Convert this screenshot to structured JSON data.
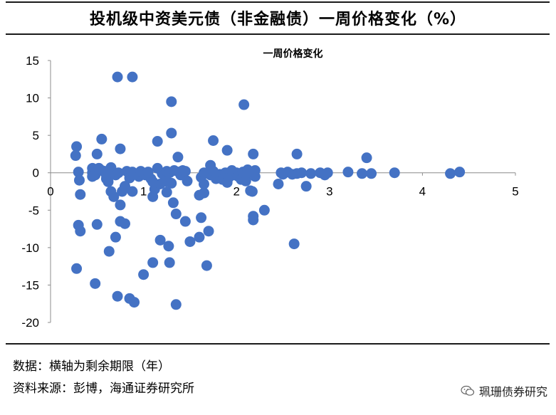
{
  "header": {
    "title": "投机级中资美元债（非金融债）一周价格变化（%）"
  },
  "chart_data": {
    "type": "scatter",
    "title": "一周价格变化",
    "xlabel": "",
    "ylabel": "",
    "xlim": [
      0,
      5
    ],
    "ylim": [
      -20,
      15
    ],
    "x_ticks": [
      0,
      1,
      2,
      3,
      4,
      5
    ],
    "y_ticks": [
      15,
      10,
      5,
      0,
      -5,
      -10,
      -15,
      -20
    ],
    "grid": false,
    "legend": "none",
    "marker_color": "#4472c4",
    "series": [
      {
        "points": [
          [
            0.28,
            3.5
          ],
          [
            0.27,
            2.3
          ],
          [
            0.3,
            0.1
          ],
          [
            0.31,
            -1.0
          ],
          [
            0.32,
            -2.9
          ],
          [
            0.3,
            -7.0
          ],
          [
            0.32,
            -7.8
          ],
          [
            0.28,
            -12.8
          ],
          [
            0.45,
            0.6
          ],
          [
            0.45,
            0.0
          ],
          [
            0.45,
            -0.5
          ],
          [
            0.48,
            -0.3
          ],
          [
            0.5,
            2.5
          ],
          [
            0.52,
            0.6
          ],
          [
            0.55,
            0.3
          ],
          [
            0.48,
            -14.8
          ],
          [
            0.5,
            -6.9
          ],
          [
            0.55,
            4.5
          ],
          [
            0.58,
            0.2
          ],
          [
            0.6,
            -0.8
          ],
          [
            0.62,
            -1.2
          ],
          [
            0.6,
            -0.3
          ],
          [
            0.6,
            0.0
          ],
          [
            0.65,
            0.7
          ],
          [
            0.65,
            -2.5
          ],
          [
            0.63,
            -10.5
          ],
          [
            0.68,
            -3.2
          ],
          [
            0.7,
            -0.3
          ],
          [
            0.7,
            -8.6
          ],
          [
            0.72,
            12.8
          ],
          [
            0.72,
            -16.5
          ],
          [
            0.73,
            0.0
          ],
          [
            0.75,
            3.2
          ],
          [
            0.75,
            -4.3
          ],
          [
            0.75,
            -6.5
          ],
          [
            0.77,
            -2.5
          ],
          [
            0.8,
            -1.8
          ],
          [
            0.8,
            -6.8
          ],
          [
            0.82,
            0.2
          ],
          [
            0.85,
            -0.2
          ],
          [
            0.85,
            -0.7
          ],
          [
            0.87,
            -0.3
          ],
          [
            0.88,
            0.1
          ],
          [
            0.9,
            -0.2
          ],
          [
            0.88,
            -2.5
          ],
          [
            0.85,
            -16.8
          ],
          [
            0.88,
            12.8
          ],
          [
            0.9,
            -17.3
          ],
          [
            0.95,
            -0.5
          ],
          [
            0.97,
            0.2
          ],
          [
            1.0,
            -13.6
          ],
          [
            1.02,
            -0.3
          ],
          [
            1.05,
            0.1
          ],
          [
            1.08,
            -0.8
          ],
          [
            1.1,
            -1.2
          ],
          [
            1.1,
            -3.2
          ],
          [
            1.12,
            -2.2
          ],
          [
            1.1,
            -12.0
          ],
          [
            1.15,
            0.6
          ],
          [
            1.15,
            4.2
          ],
          [
            1.18,
            -1.5
          ],
          [
            1.18,
            -9.0
          ],
          [
            1.2,
            -0.1
          ],
          [
            1.22,
            -0.3
          ],
          [
            1.25,
            -1.2
          ],
          [
            1.25,
            -2.6
          ],
          [
            1.25,
            0.2
          ],
          [
            1.27,
            -9.8
          ],
          [
            1.28,
            0.0
          ],
          [
            1.28,
            -12.0
          ],
          [
            1.3,
            9.5
          ],
          [
            1.3,
            5.3
          ],
          [
            1.3,
            -1.4
          ],
          [
            1.32,
            -4.0
          ],
          [
            1.33,
            0.3
          ],
          [
            1.35,
            -5.5
          ],
          [
            1.35,
            -17.6
          ],
          [
            1.37,
            2.1
          ],
          [
            1.38,
            0.1
          ],
          [
            1.4,
            -0.3
          ],
          [
            1.42,
            0.3
          ],
          [
            1.45,
            -6.5
          ],
          [
            1.45,
            0.2
          ],
          [
            1.47,
            -1.1
          ],
          [
            1.5,
            -9.2
          ],
          [
            1.6,
            -8.6
          ],
          [
            1.6,
            -3.0
          ],
          [
            1.62,
            -6.0
          ],
          [
            1.62,
            -0.6
          ],
          [
            1.65,
            -1.5
          ],
          [
            1.65,
            -2.7
          ],
          [
            1.65,
            0.0
          ],
          [
            1.68,
            -12.4
          ],
          [
            1.7,
            -7.8
          ],
          [
            1.72,
            1.0
          ],
          [
            1.72,
            -0.3
          ],
          [
            1.75,
            0.2
          ],
          [
            1.75,
            4.3
          ],
          [
            1.78,
            -0.8
          ],
          [
            1.8,
            -0.5
          ],
          [
            1.82,
            -0.2
          ],
          [
            1.85,
            -0.9
          ],
          [
            1.88,
            0.0
          ],
          [
            1.9,
            3.0
          ],
          [
            1.9,
            -1.3
          ],
          [
            1.92,
            -0.6
          ],
          [
            1.95,
            0.3
          ],
          [
            1.98,
            -0.3
          ],
          [
            2.0,
            0.0
          ],
          [
            2.02,
            -0.5
          ],
          [
            2.05,
            -0.9
          ],
          [
            2.07,
            0.1
          ],
          [
            2.08,
            9.1
          ],
          [
            2.1,
            -1.1
          ],
          [
            2.1,
            -0.2
          ],
          [
            2.12,
            0.4
          ],
          [
            2.15,
            -2.4
          ],
          [
            2.17,
            -2.5
          ],
          [
            2.18,
            2.5
          ],
          [
            2.18,
            -5.8
          ],
          [
            2.18,
            -6.3
          ],
          [
            2.2,
            -0.5
          ],
          [
            2.2,
            0.3
          ],
          [
            2.3,
            -5.0
          ],
          [
            2.45,
            -1.5
          ],
          [
            2.48,
            0.0
          ],
          [
            2.5,
            -0.2
          ],
          [
            2.55,
            0.1
          ],
          [
            2.6,
            -0.2
          ],
          [
            2.62,
            -9.5
          ],
          [
            2.65,
            2.5
          ],
          [
            2.65,
            -0.1
          ],
          [
            2.7,
            0.0
          ],
          [
            2.75,
            -1.8
          ],
          [
            2.8,
            -0.1
          ],
          [
            2.9,
            0.0
          ],
          [
            2.95,
            -0.3
          ],
          [
            2.98,
            0.0
          ],
          [
            3.2,
            0.1
          ],
          [
            3.35,
            -0.1
          ],
          [
            3.4,
            2.0
          ],
          [
            3.45,
            -0.1
          ],
          [
            3.7,
            0.0
          ],
          [
            4.3,
            -0.1
          ],
          [
            4.4,
            0.1
          ]
        ]
      }
    ]
  },
  "footer": {
    "note_line1": "数据：横轴为剩余期限（年）",
    "note_line2": "资料来源：彭博，海通证券研究所",
    "watermark": "珮珊债券研究"
  }
}
